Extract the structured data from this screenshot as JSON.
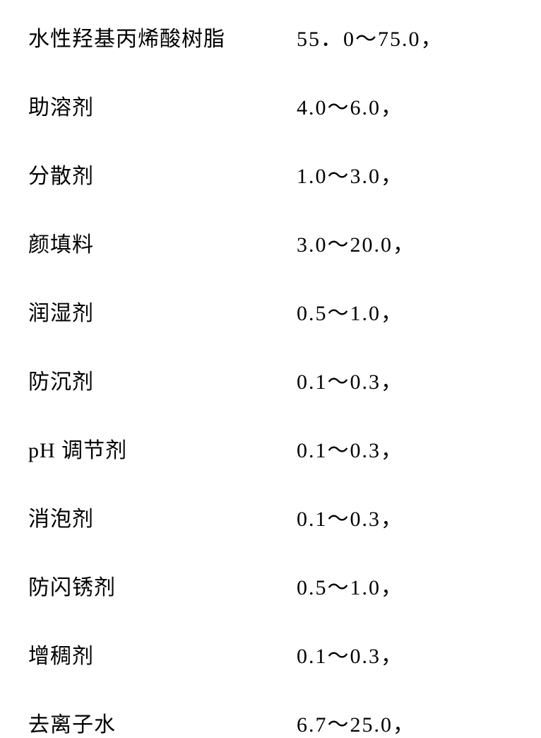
{
  "composition_table": {
    "type": "table",
    "columns": [
      "component",
      "range"
    ],
    "font_family": "SimSun",
    "label_fontsize": 30,
    "value_fontsize": 30,
    "text_color": "#000000",
    "background_color": "#ffffff",
    "row_spacing": 53,
    "label_column_width": 380,
    "rows": [
      {
        "component": "水性羟基丙烯酸树脂",
        "range": "55．0～75.0，"
      },
      {
        "component": "助溶剂",
        "range": "4.0～6.0，"
      },
      {
        "component": "分散剂",
        "range": "1.0～3.0，"
      },
      {
        "component": "颜填料",
        "range": "3.0～20.0，"
      },
      {
        "component": "润湿剂",
        "range": "0.5～1.0，"
      },
      {
        "component": "防沉剂",
        "range": "0.1～0.3，"
      },
      {
        "component": "pH 调节剂",
        "range": "0.1～0.3，"
      },
      {
        "component": "消泡剂",
        "range": "0.1～0.3，"
      },
      {
        "component": "防闪锈剂",
        "range": "0.5～1.0，"
      },
      {
        "component": "增稠剂",
        "range": "0.1～0.3，"
      },
      {
        "component": "去离子水",
        "range": "6.7～25.0，"
      }
    ]
  }
}
